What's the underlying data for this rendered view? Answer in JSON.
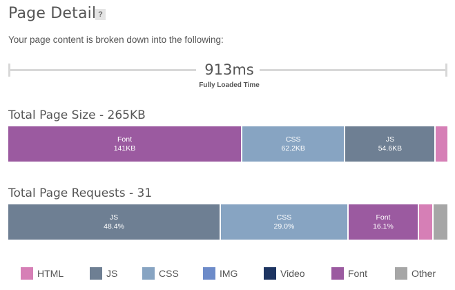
{
  "header": {
    "title": "Page Details",
    "help_label": "?",
    "intro": "Your page content is broken down into the following:"
  },
  "timing": {
    "value": "913ms",
    "label": "Fully Loaded Time"
  },
  "colors": {
    "HTML": "#d67fb6",
    "JS": "#6e7f93",
    "CSS": "#87a4c2",
    "IMG": "#6d8bc9",
    "Video": "#1d3461",
    "Font": "#9b5aa0",
    "Other": "#a6a6a6"
  },
  "size": {
    "title": "Total Page Size - 265KB",
    "segments": [
      {
        "type": "Font",
        "label": "Font",
        "value": "141KB",
        "share": 53.3
      },
      {
        "type": "CSS",
        "label": "CSS",
        "value": "62.2KB",
        "share": 23.5
      },
      {
        "type": "JS",
        "label": "JS",
        "value": "54.6KB",
        "share": 20.6
      },
      {
        "type": "HTML",
        "label": "",
        "value": "",
        "share": 2.6
      },
      {
        "type": "Other",
        "label": "",
        "value": "",
        "share": 0.0
      }
    ]
  },
  "requests": {
    "title": "Total Page Requests - 31",
    "segments": [
      {
        "type": "JS",
        "label": "JS",
        "value": "48.4%",
        "share": 48.4
      },
      {
        "type": "CSS",
        "label": "CSS",
        "value": "29.0%",
        "share": 29.0
      },
      {
        "type": "Font",
        "label": "Font",
        "value": "16.1%",
        "share": 16.1
      },
      {
        "type": "HTML",
        "label": "",
        "value": "",
        "share": 3.2
      },
      {
        "type": "Other",
        "label": "",
        "value": "",
        "share": 3.2
      }
    ]
  },
  "legend": [
    "HTML",
    "JS",
    "CSS",
    "IMG",
    "Video",
    "Font",
    "Other"
  ]
}
